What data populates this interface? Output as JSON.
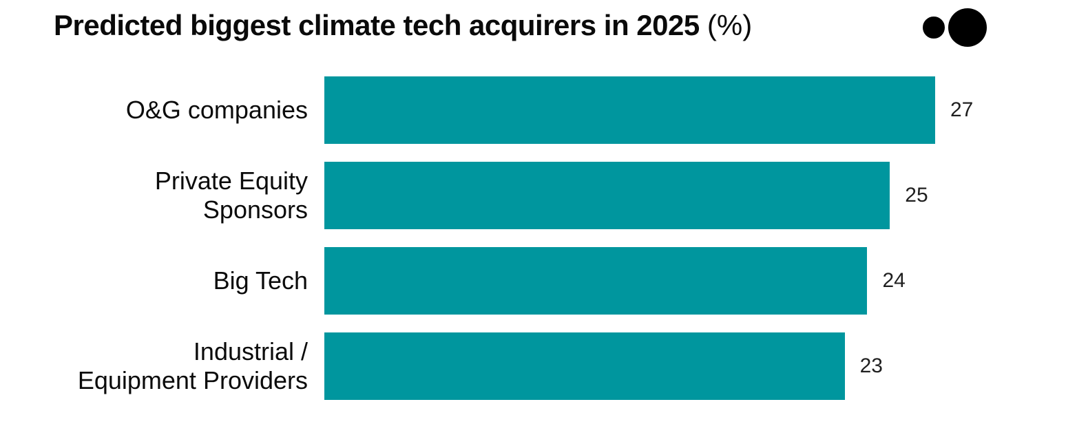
{
  "header": {
    "title_bold": "Predicted biggest climate tech acquirers in 2025",
    "title_suffix": "(%)"
  },
  "logo": {
    "icons": [
      "outlined-circle",
      "filled-circle"
    ],
    "color": "#000000"
  },
  "chart_data": {
    "type": "bar",
    "orientation": "horizontal",
    "title": "Predicted biggest climate tech acquirers in 2025 (%)",
    "unit": "%",
    "categories": [
      "O&G companies",
      "Private Equity\nSponsors",
      "Big Tech",
      "Industrial /\nEquipment Providers"
    ],
    "values": [
      27,
      25,
      24,
      23
    ],
    "xlim": [
      0,
      27
    ],
    "bar_color": "#00969E",
    "value_label_color": "#1f1f1f",
    "grid": false,
    "legend": false,
    "value_labels_position": "right-of-bar",
    "category_labels_position": "left-aligned-right"
  }
}
